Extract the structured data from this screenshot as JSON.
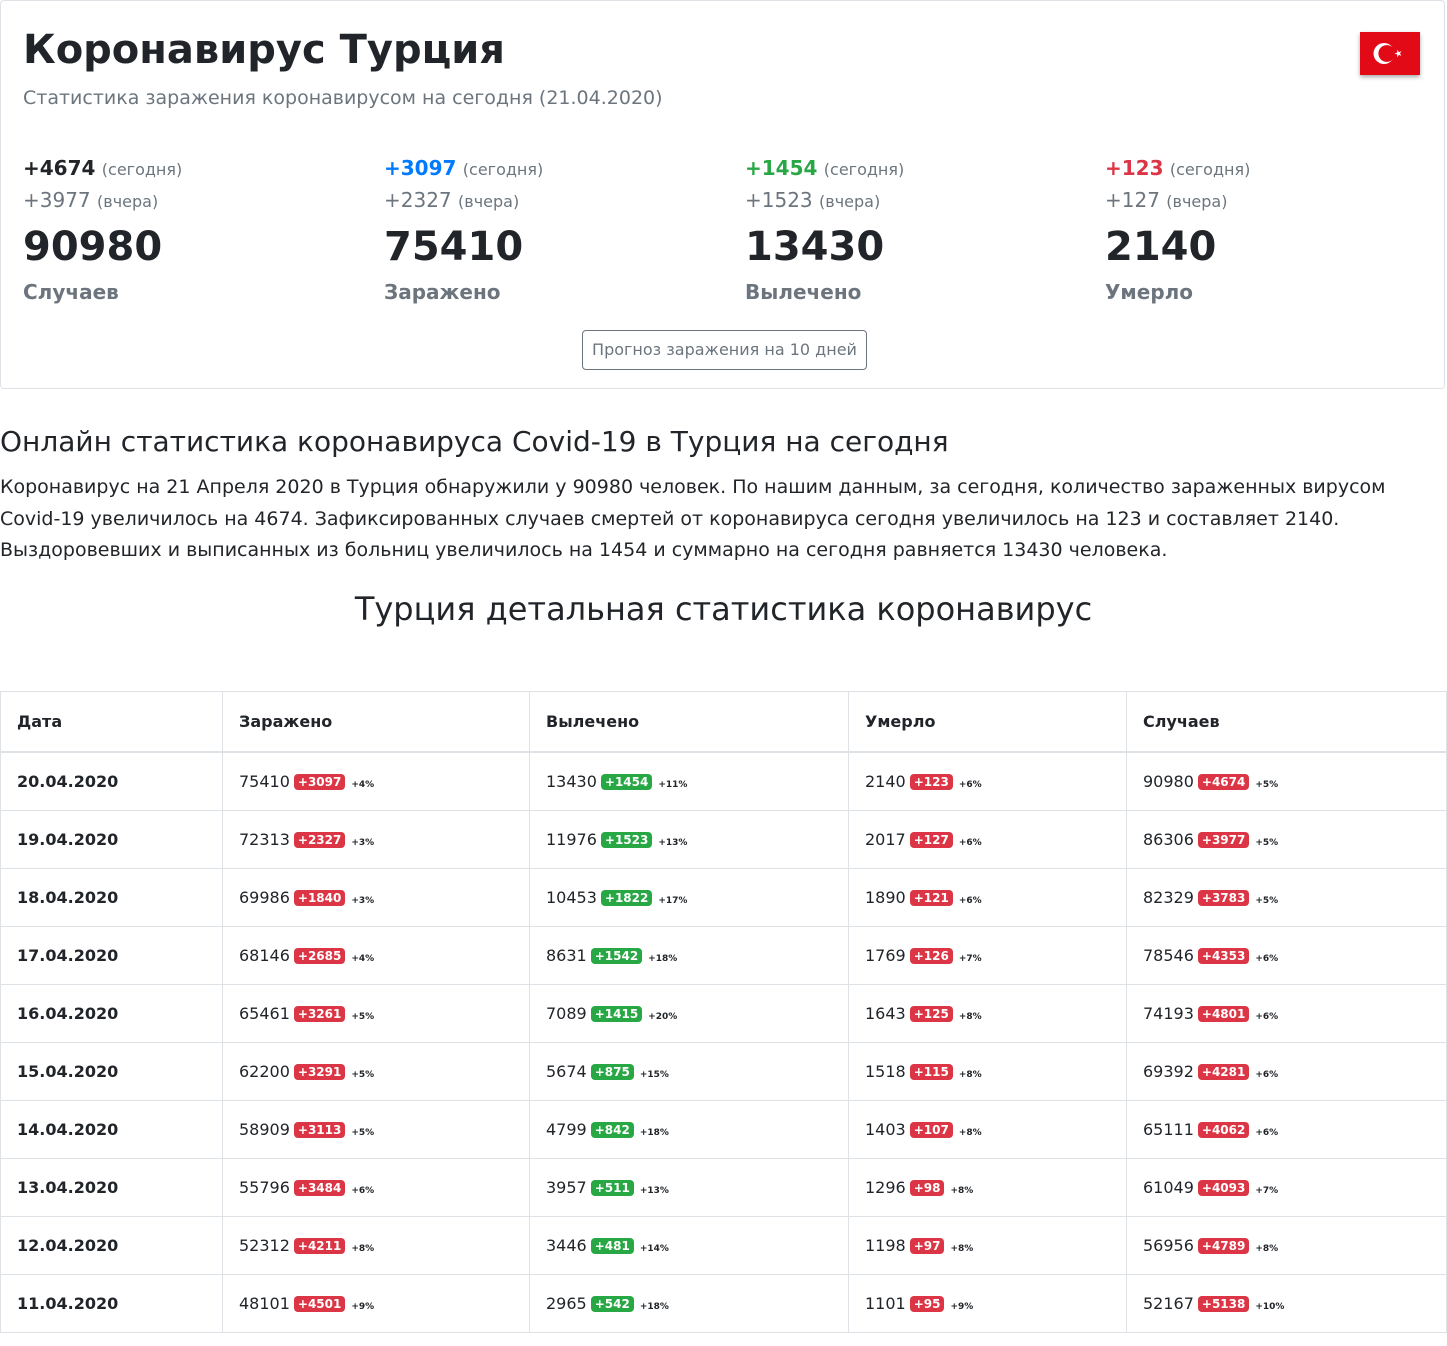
{
  "header": {
    "title": "Коронавирус Турция",
    "subtitle": "Статистика заражения коронавирусом на сегодня (21.04.2020)",
    "flag_colors": {
      "red": "#e30a17",
      "white": "#ffffff"
    }
  },
  "summary": [
    {
      "today": "+4674",
      "today_label": "(сегодня)",
      "yesterday": "+3977",
      "yesterday_label": "(вчера)",
      "total": "90980",
      "label": "Случаев",
      "color": "#212529"
    },
    {
      "today": "+3097",
      "today_label": "(сегодня)",
      "yesterday": "+2327",
      "yesterday_label": "(вчера)",
      "total": "75410",
      "label": "Заражено",
      "color": "#007bff"
    },
    {
      "today": "+1454",
      "today_label": "(сегодня)",
      "yesterday": "+1523",
      "yesterday_label": "(вчера)",
      "total": "13430",
      "label": "Вылечено",
      "color": "#28a745"
    },
    {
      "today": "+123",
      "today_label": "(сегодня)",
      "yesterday": "+127",
      "yesterday_label": "(вчера)",
      "total": "2140",
      "label": "Умерло",
      "color": "#dc3545"
    }
  ],
  "forecast_button": "Прогноз заражения на 10 дней",
  "online": {
    "heading": "Онлайн статистика коронавируса Covid-19 в Турция на сегодня",
    "paragraph": "Коронавирус на 21 Апреля 2020 в Турция обнаружили у 90980 человек. По нашим данным, за сегодня, количество зараженных вирусом Covid-19 увеличилось на 4674. Зафиксированных случаев смертей от коронавируса сегодня увеличилось на 123 и составляет 2140. Выздоровевших и выписанных из больниц увеличилось на 1454 и суммарно на сегодня равняется 13430 человека."
  },
  "detail_heading": "Турция детальная статистика коронавирус",
  "table": {
    "headers": [
      "Дата",
      "Заражено",
      "Вылечено",
      "Умерло",
      "Случаев"
    ],
    "rows": [
      {
        "date": "20.04.2020",
        "infected": "75410",
        "infected_delta": "+3097",
        "infected_pct": "+4%",
        "recovered": "13430",
        "recovered_delta": "+1454",
        "recovered_pct": "+11%",
        "died": "2140",
        "died_delta": "+123",
        "died_pct": "+6%",
        "cases": "90980",
        "cases_delta": "+4674",
        "cases_pct": "+5%"
      },
      {
        "date": "19.04.2020",
        "infected": "72313",
        "infected_delta": "+2327",
        "infected_pct": "+3%",
        "recovered": "11976",
        "recovered_delta": "+1523",
        "recovered_pct": "+13%",
        "died": "2017",
        "died_delta": "+127",
        "died_pct": "+6%",
        "cases": "86306",
        "cases_delta": "+3977",
        "cases_pct": "+5%"
      },
      {
        "date": "18.04.2020",
        "infected": "69986",
        "infected_delta": "+1840",
        "infected_pct": "+3%",
        "recovered": "10453",
        "recovered_delta": "+1822",
        "recovered_pct": "+17%",
        "died": "1890",
        "died_delta": "+121",
        "died_pct": "+6%",
        "cases": "82329",
        "cases_delta": "+3783",
        "cases_pct": "+5%"
      },
      {
        "date": "17.04.2020",
        "infected": "68146",
        "infected_delta": "+2685",
        "infected_pct": "+4%",
        "recovered": "8631",
        "recovered_delta": "+1542",
        "recovered_pct": "+18%",
        "died": "1769",
        "died_delta": "+126",
        "died_pct": "+7%",
        "cases": "78546",
        "cases_delta": "+4353",
        "cases_pct": "+6%"
      },
      {
        "date": "16.04.2020",
        "infected": "65461",
        "infected_delta": "+3261",
        "infected_pct": "+5%",
        "recovered": "7089",
        "recovered_delta": "+1415",
        "recovered_pct": "+20%",
        "died": "1643",
        "died_delta": "+125",
        "died_pct": "+8%",
        "cases": "74193",
        "cases_delta": "+4801",
        "cases_pct": "+6%"
      },
      {
        "date": "15.04.2020",
        "infected": "62200",
        "infected_delta": "+3291",
        "infected_pct": "+5%",
        "recovered": "5674",
        "recovered_delta": "+875",
        "recovered_pct": "+15%",
        "died": "1518",
        "died_delta": "+115",
        "died_pct": "+8%",
        "cases": "69392",
        "cases_delta": "+4281",
        "cases_pct": "+6%"
      },
      {
        "date": "14.04.2020",
        "infected": "58909",
        "infected_delta": "+3113",
        "infected_pct": "+5%",
        "recovered": "4799",
        "recovered_delta": "+842",
        "recovered_pct": "+18%",
        "died": "1403",
        "died_delta": "+107",
        "died_pct": "+8%",
        "cases": "65111",
        "cases_delta": "+4062",
        "cases_pct": "+6%"
      },
      {
        "date": "13.04.2020",
        "infected": "55796",
        "infected_delta": "+3484",
        "infected_pct": "+6%",
        "recovered": "3957",
        "recovered_delta": "+511",
        "recovered_pct": "+13%",
        "died": "1296",
        "died_delta": "+98",
        "died_pct": "+8%",
        "cases": "61049",
        "cases_delta": "+4093",
        "cases_pct": "+7%"
      },
      {
        "date": "12.04.2020",
        "infected": "52312",
        "infected_delta": "+4211",
        "infected_pct": "+8%",
        "recovered": "3446",
        "recovered_delta": "+481",
        "recovered_pct": "+14%",
        "died": "1198",
        "died_delta": "+97",
        "died_pct": "+8%",
        "cases": "56956",
        "cases_delta": "+4789",
        "cases_pct": "+8%"
      },
      {
        "date": "11.04.2020",
        "infected": "48101",
        "infected_delta": "+4501",
        "infected_pct": "+9%",
        "recovered": "2965",
        "recovered_delta": "+542",
        "recovered_pct": "+18%",
        "died": "1101",
        "died_delta": "+95",
        "died_pct": "+9%",
        "cases": "52167",
        "cases_delta": "+5138",
        "cases_pct": "+10%"
      }
    ]
  },
  "colors": {
    "badge_red": "#dc3545",
    "badge_green": "#28a745",
    "muted": "#6c757d",
    "border": "#dee2e6"
  }
}
